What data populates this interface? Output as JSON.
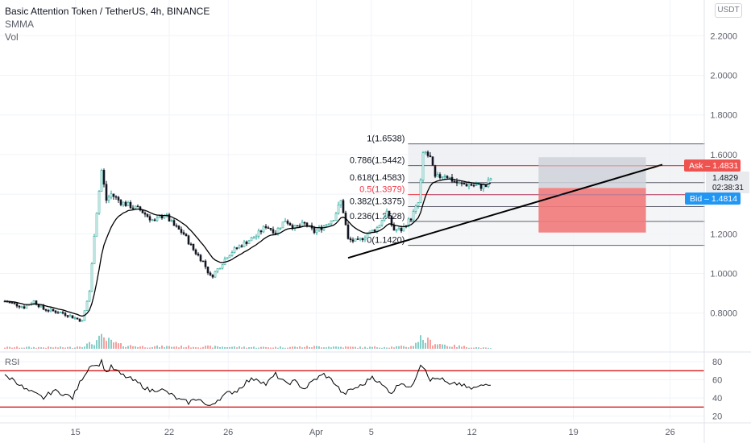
{
  "header": {
    "title": "Basic Attention Token / TetherUS, 4h, BINANCE",
    "indicators": [
      "SMMA",
      "Vol"
    ],
    "currency_button": "USDT"
  },
  "colors": {
    "up": "#26a69a",
    "down": "#ef5350",
    "smma": "#000000",
    "ask": "#ef5350",
    "bid": "#2196f3",
    "rsi_band": "#d50000",
    "fib_mid": "#f23645",
    "zone_gray": "#cfd2d9",
    "zone_red": "#f27a7a"
  },
  "chart_data": {
    "type": "candlestick",
    "price_axis": {
      "ticks": [
        "2.2000",
        "2.0000",
        "1.8000",
        "1.6000",
        "1.4000",
        "1.2000",
        "1.0000",
        "0.8000"
      ],
      "range": [
        0.74,
        2.31
      ]
    },
    "time_axis": {
      "ticks": [
        "15",
        "22",
        "26",
        "Apr",
        "5",
        "12",
        "19",
        "26"
      ],
      "tick_index": [
        7.3,
        17.0,
        23.1,
        32.2,
        37.9,
        48.3,
        58.8,
        68.8
      ]
    },
    "price_path": [
      [
        0,
        0.86
      ],
      [
        2,
        0.83
      ],
      [
        3,
        0.86
      ],
      [
        4,
        0.82
      ],
      [
        6,
        0.8
      ],
      [
        8,
        0.76
      ],
      [
        8.8,
        0.92
      ],
      [
        9.3,
        1.23
      ],
      [
        10,
        1.52
      ],
      [
        10.5,
        1.37
      ],
      [
        11,
        1.4
      ],
      [
        12,
        1.36
      ],
      [
        13,
        1.34
      ],
      [
        14,
        1.32
      ],
      [
        15.5,
        1.26
      ],
      [
        16.5,
        1.3
      ],
      [
        17.5,
        1.24
      ],
      [
        18.5,
        1.2
      ],
      [
        19.5,
        1.12
      ],
      [
        20.5,
        1.06
      ],
      [
        21.3,
        0.98
      ],
      [
        22.3,
        1.04
      ],
      [
        23,
        1.09
      ],
      [
        24,
        1.13
      ],
      [
        25,
        1.16
      ],
      [
        26,
        1.19
      ],
      [
        27,
        1.24
      ],
      [
        28,
        1.21
      ],
      [
        29,
        1.27
      ],
      [
        30,
        1.23
      ],
      [
        31,
        1.25
      ],
      [
        32,
        1.21
      ],
      [
        33,
        1.24
      ],
      [
        34,
        1.28
      ],
      [
        34.8,
        1.37
      ],
      [
        35.5,
        1.17
      ],
      [
        36.5,
        1.16
      ],
      [
        37.5,
        1.2
      ],
      [
        38.5,
        1.23
      ],
      [
        39.5,
        1.31
      ],
      [
        40.2,
        1.22
      ],
      [
        41,
        1.22
      ],
      [
        42,
        1.28
      ],
      [
        42.8,
        1.36
      ],
      [
        43.3,
        1.62
      ],
      [
        44,
        1.58
      ],
      [
        44.5,
        1.48
      ],
      [
        45.5,
        1.5
      ],
      [
        46.3,
        1.47
      ],
      [
        47,
        1.45
      ],
      [
        48,
        1.45
      ],
      [
        49,
        1.44
      ],
      [
        49.8,
        1.44
      ],
      [
        50.2,
        1.48
      ]
    ],
    "volume_path": [
      [
        0,
        2
      ],
      [
        7,
        2
      ],
      [
        8,
        4
      ],
      [
        9,
        7
      ],
      [
        10,
        14
      ],
      [
        11,
        9
      ],
      [
        12,
        5
      ],
      [
        14,
        3
      ],
      [
        20,
        3
      ],
      [
        27,
        2
      ],
      [
        33,
        3
      ],
      [
        37,
        2
      ],
      [
        42,
        3
      ],
      [
        43,
        14
      ],
      [
        44,
        9
      ],
      [
        46,
        4
      ],
      [
        50,
        1
      ]
    ],
    "volume_max": 32,
    "smma": {
      "label": "SMMA",
      "color": "#000000"
    },
    "rsi": {
      "label": "RSI",
      "ticks": [
        "80",
        "60",
        "40",
        "20"
      ],
      "bands": [
        70,
        30
      ],
      "range": [
        17,
        88
      ],
      "path": [
        [
          0,
          64
        ],
        [
          1,
          60
        ],
        [
          2,
          50
        ],
        [
          3,
          45
        ],
        [
          4,
          40
        ],
        [
          5,
          48
        ],
        [
          6,
          45
        ],
        [
          7,
          40
        ],
        [
          8,
          62
        ],
        [
          9,
          78
        ],
        [
          9.5,
          75
        ],
        [
          10,
          80
        ],
        [
          10.5,
          68
        ],
        [
          11,
          74
        ],
        [
          12,
          66
        ],
        [
          13,
          61
        ],
        [
          14,
          55
        ],
        [
          15,
          48
        ],
        [
          16,
          50
        ],
        [
          17,
          45
        ],
        [
          18,
          38
        ],
        [
          19,
          35
        ],
        [
          20,
          40
        ],
        [
          21,
          30
        ],
        [
          22,
          38
        ],
        [
          23,
          45
        ],
        [
          24,
          48
        ],
        [
          25,
          58
        ],
        [
          26,
          62
        ],
        [
          27,
          55
        ],
        [
          28,
          66
        ],
        [
          29,
          56
        ],
        [
          30,
          58
        ],
        [
          31,
          50
        ],
        [
          32,
          60
        ],
        [
          33,
          66
        ],
        [
          34,
          58
        ],
        [
          35,
          44
        ],
        [
          36,
          50
        ],
        [
          37,
          54
        ],
        [
          38,
          64
        ],
        [
          39,
          54
        ],
        [
          40,
          46
        ],
        [
          41,
          58
        ],
        [
          42,
          50
        ],
        [
          43,
          78
        ],
        [
          43.5,
          72
        ],
        [
          44,
          60
        ],
        [
          45,
          62
        ],
        [
          46,
          54
        ],
        [
          47,
          56
        ],
        [
          48,
          50
        ],
        [
          49,
          52
        ],
        [
          50,
          56
        ]
      ]
    },
    "fibonacci": [
      {
        "label": "1(1.6538)",
        "price": 1.6538
      },
      {
        "label": "0.786(1.5442)",
        "price": 1.5442
      },
      {
        "label": "0.618(1.4583)",
        "price": 1.4583
      },
      {
        "label": "0.5(1.3979)",
        "price": 1.3979
      },
      {
        "label": "0.382(1.3375)",
        "price": 1.3375
      },
      {
        "label": "0.236(1.2628)",
        "price": 1.2628
      },
      {
        "label": "0(1.1420)",
        "price": 1.142
      }
    ],
    "trendline": {
      "start": [
        35.5,
        1.0785
      ],
      "end": [
        68.0,
        1.5492
      ]
    },
    "position_zones": {
      "target": [
        1.5865,
        1.4314
      ],
      "stop": [
        1.4314,
        1.2065
      ],
      "range": [
        55.2,
        66.3
      ]
    },
    "markers": [
      {
        "label": "Ask",
        "value": "1.4831",
        "price": 1.4831
      },
      {
        "label": "Last",
        "value": "1.4829",
        "price": 1.4829,
        "countdown": "02:38:31"
      },
      {
        "label": "Bid",
        "value": "1.4814",
        "price": 1.4814
      }
    ]
  }
}
